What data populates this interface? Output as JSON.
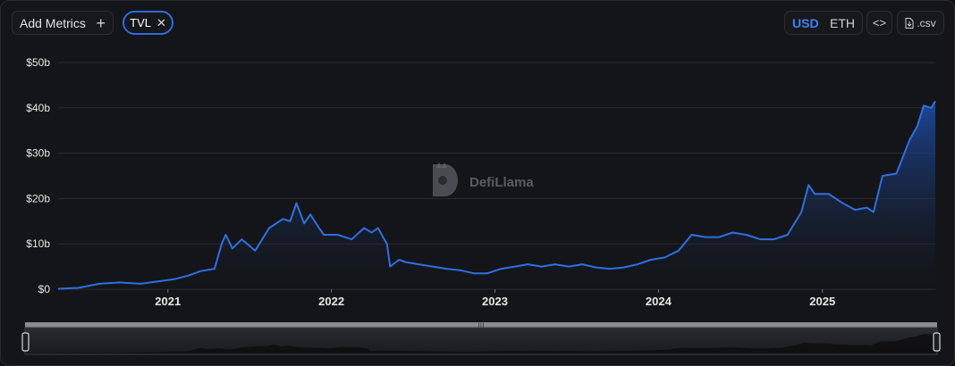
{
  "toolbar": {
    "add_metrics_label": "Add Metrics",
    "add_metrics_icon": "plus-icon",
    "metric_chip_label": "TVL",
    "currency_options": [
      "USD",
      "ETH"
    ],
    "selected_currency": "USD",
    "embed_icon": "code-icon",
    "csv_label": ".csv",
    "csv_icon": "file-download-icon"
  },
  "watermark": {
    "text": "DefiLlama",
    "icon": "llama-logo-icon"
  },
  "colors": {
    "line": "#2f6fe0",
    "accent": "#3b82f6",
    "grid": "#2a2c31"
  },
  "chart_data": {
    "type": "area",
    "title": "",
    "xlabel": "",
    "ylabel": "",
    "series_name": "",
    "y_ticks": [
      "$0",
      "$10b",
      "$20b",
      "$30b",
      "$40b",
      "$50b"
    ],
    "ylim": [
      0,
      50
    ],
    "y_unit": "$ billions",
    "x_ticks": [
      "2021",
      "2022",
      "2023",
      "2024",
      "2025"
    ],
    "xlim": [
      "2020-05-01",
      "2025-09-10"
    ],
    "grid": "horizontal",
    "x": [
      "2020-05-01",
      "2020-06-15",
      "2020-08-01",
      "2020-09-15",
      "2020-11-01",
      "2020-12-15",
      "2021-01-15",
      "2021-02-15",
      "2021-03-15",
      "2021-04-15",
      "2021-05-01",
      "2021-05-10",
      "2021-05-25",
      "2021-06-15",
      "2021-07-15",
      "2021-08-15",
      "2021-09-15",
      "2021-10-01",
      "2021-10-15",
      "2021-11-01",
      "2021-11-15",
      "2021-12-01",
      "2021-12-15",
      "2022-01-15",
      "2022-02-15",
      "2022-03-15",
      "2022-04-01",
      "2022-04-15",
      "2022-05-05",
      "2022-05-12",
      "2022-06-01",
      "2022-06-15",
      "2022-07-15",
      "2022-08-15",
      "2022-09-15",
      "2022-10-15",
      "2022-11-15",
      "2022-12-15",
      "2023-01-15",
      "2023-02-15",
      "2023-03-15",
      "2023-04-15",
      "2023-05-15",
      "2023-06-15",
      "2023-07-15",
      "2023-08-15",
      "2023-09-15",
      "2023-10-15",
      "2023-11-15",
      "2023-12-15",
      "2024-01-15",
      "2024-02-15",
      "2024-03-15",
      "2024-04-15",
      "2024-05-15",
      "2024-06-15",
      "2024-07-15",
      "2024-08-15",
      "2024-09-15",
      "2024-10-15",
      "2024-11-15",
      "2024-12-01",
      "2024-12-15",
      "2025-01-15",
      "2025-02-15",
      "2025-03-15",
      "2025-04-10",
      "2025-04-25",
      "2025-05-15",
      "2025-06-15",
      "2025-07-15",
      "2025-08-01",
      "2025-08-15",
      "2025-09-01",
      "2025-09-10"
    ],
    "values": [
      0.1,
      0.3,
      1.2,
      1.5,
      1.2,
      1.8,
      2.2,
      3.0,
      4.0,
      4.5,
      10.0,
      12.0,
      9.0,
      11.0,
      8.5,
      13.5,
      15.5,
      15.0,
      19.0,
      14.5,
      16.5,
      14.0,
      12.0,
      12.0,
      11.0,
      13.5,
      12.5,
      13.5,
      10.0,
      5.0,
      6.5,
      6.0,
      5.5,
      5.0,
      4.5,
      4.2,
      3.5,
      3.5,
      4.5,
      5.0,
      5.5,
      5.0,
      5.5,
      5.0,
      5.5,
      4.8,
      4.5,
      4.8,
      5.5,
      6.5,
      7.0,
      8.5,
      12.0,
      11.5,
      11.5,
      12.5,
      12.0,
      11.0,
      11.0,
      12.0,
      17.0,
      23.0,
      21.0,
      21.0,
      19.0,
      17.5,
      18.0,
      17.0,
      25.0,
      25.5,
      33.0,
      36.0,
      40.5,
      40.0,
      41.5
    ]
  }
}
